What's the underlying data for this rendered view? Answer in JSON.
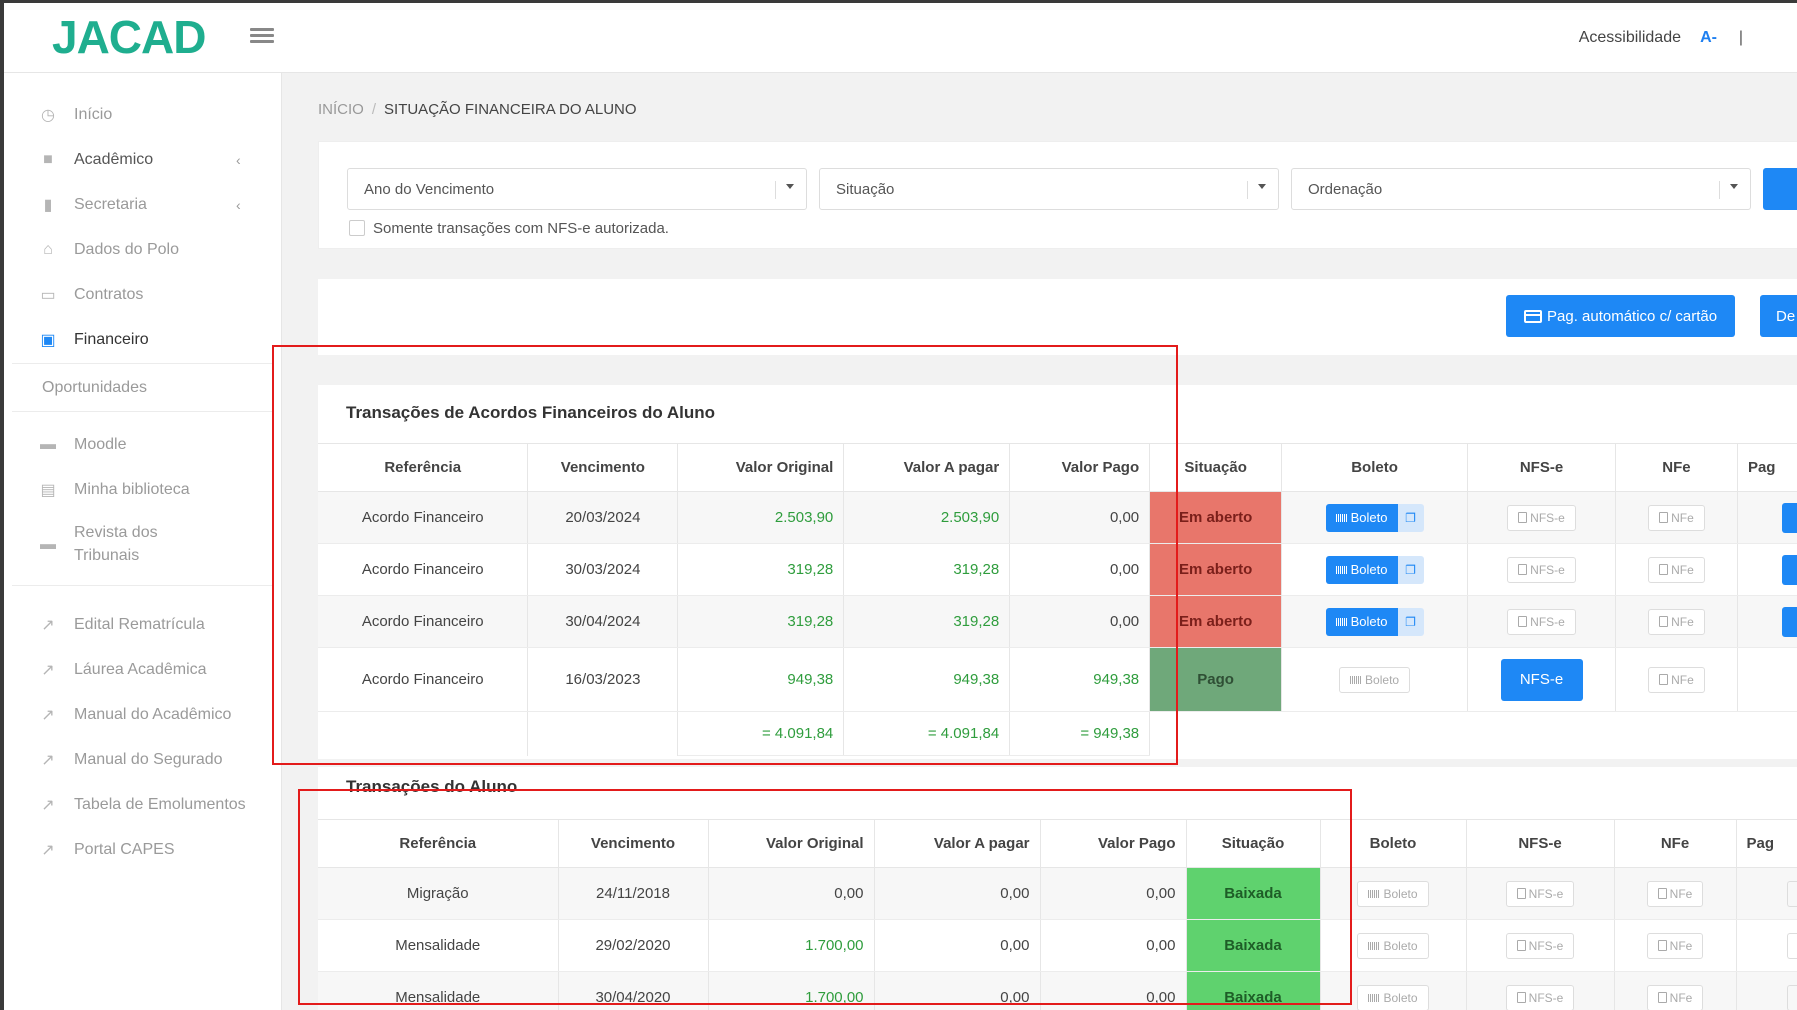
{
  "header": {
    "logo_text": "JACAD",
    "accessibility_label": "Acessibilidade",
    "font_decrease": "A-",
    "separator": "|"
  },
  "sidebar": {
    "items": [
      {
        "label": "Início",
        "icon": "clock-icon"
      },
      {
        "label": "Acadêmico",
        "icon": "graduation-icon",
        "chevron": "‹"
      },
      {
        "label": "Secretaria",
        "icon": "document-icon",
        "chevron": "‹"
      },
      {
        "label": "Dados do Polo",
        "icon": "home-icon"
      },
      {
        "label": "Contratos",
        "icon": "contract-icon"
      },
      {
        "label": "Financeiro",
        "icon": "money-icon"
      }
    ],
    "section_heading": "Oportunidades",
    "links": [
      {
        "label": "Moodle",
        "icon": "graduation-cap-icon"
      },
      {
        "label": "Minha biblioteca",
        "icon": "book-icon"
      },
      {
        "label": "Revista dos",
        "label2": "Tribunais",
        "icon": "graduation-cap-icon"
      },
      {
        "label": "Edital Rematrícula",
        "icon": "external-link-icon"
      },
      {
        "label": "Láurea Acadêmica",
        "icon": "external-link-icon"
      },
      {
        "label": "Manual do Acadêmico",
        "icon": "external-link-icon"
      },
      {
        "label": "Manual do Segurado",
        "icon": "external-link-icon"
      },
      {
        "label": "Tabela de Emolumentos",
        "icon": "external-link-icon"
      },
      {
        "label": "Portal CAPES",
        "icon": "external-link-icon"
      }
    ]
  },
  "breadcrumb": {
    "home": "INÍCIO",
    "divider": "/",
    "current": "SITUAÇÃO FINANCEIRA DO ALUNO"
  },
  "filters": {
    "year": "Ano do Vencimento",
    "situation": "Situação",
    "order": "Ordenação",
    "nfs_only": "Somente transações com NFS-e autorizada."
  },
  "actions": {
    "auto_pay": "Pag. automático c/ cartão",
    "second": "De"
  },
  "acordos": {
    "title": "Transações de Acordos Financeiros do Aluno",
    "headers": [
      "Referência",
      "Vencimento",
      "Valor Original",
      "Valor A pagar",
      "Valor Pago",
      "Situação",
      "Boleto",
      "NFS-e",
      "NFe",
      "Pag"
    ],
    "rows": [
      {
        "ref": "Acordo Financeiro",
        "venc": "20/03/2024",
        "orig": "2.503,90",
        "apagar": "2.503,90",
        "pago": "0,00",
        "sit": "Em aberto"
      },
      {
        "ref": "Acordo Financeiro",
        "venc": "30/03/2024",
        "orig": "319,28",
        "apagar": "319,28",
        "pago": "0,00",
        "sit": "Em aberto"
      },
      {
        "ref": "Acordo Financeiro",
        "venc": "30/04/2024",
        "orig": "319,28",
        "apagar": "319,28",
        "pago": "0,00",
        "sit": "Em aberto"
      },
      {
        "ref": "Acordo Financeiro",
        "venc": "16/03/2023",
        "orig": "949,38",
        "apagar": "949,38",
        "pago": "949,38",
        "sit": "Pago"
      }
    ],
    "totals": {
      "orig": "= 4.091,84",
      "apagar": "= 4.091,84",
      "pago": "= 949,38"
    }
  },
  "transacoes": {
    "title": "Transações do Aluno",
    "headers": [
      "Referência",
      "Vencimento",
      "Valor Original",
      "Valor A pagar",
      "Valor Pago",
      "Situação",
      "Boleto",
      "NFS-e",
      "NFe",
      "Pag"
    ],
    "rows": [
      {
        "ref": "Migração",
        "venc": "24/11/2018",
        "orig": "0,00",
        "apagar": "0,00",
        "pago": "0,00",
        "sit": "Baixada"
      },
      {
        "ref": "Mensalidade",
        "venc": "29/02/2020",
        "orig": "1.700,00",
        "apagar": "0,00",
        "pago": "0,00",
        "sit": "Baixada"
      },
      {
        "ref": "Mensalidade",
        "venc": "30/04/2020",
        "orig": "1.700,00",
        "apagar": "0,00",
        "pago": "0,00",
        "sit": "Baixada"
      }
    ]
  },
  "buttons": {
    "boleto": "Boleto",
    "nfse": "NFS-e",
    "nfe": "NFe"
  },
  "colors": {
    "accent": "#1e88f5",
    "brand": "#1fae8f",
    "open": "#e8766b",
    "paid": "#6fa87a",
    "settled": "#5fd26e",
    "highlight": "#e31b1b"
  }
}
